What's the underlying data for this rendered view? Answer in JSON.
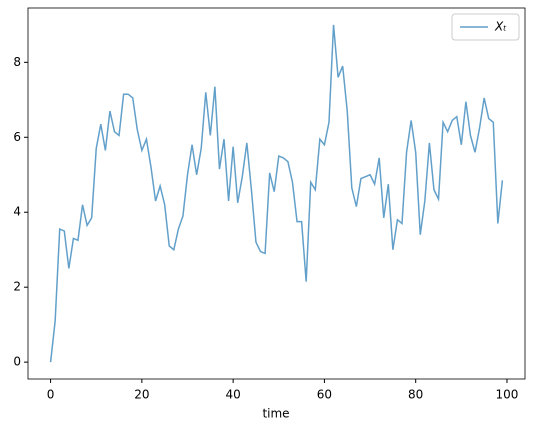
{
  "chart_data": {
    "type": "line",
    "xlabel": "time",
    "x": [
      0,
      1,
      2,
      3,
      4,
      5,
      6,
      7,
      8,
      9,
      10,
      11,
      12,
      13,
      14,
      15,
      16,
      17,
      18,
      19,
      20,
      21,
      22,
      23,
      24,
      25,
      26,
      27,
      28,
      29,
      30,
      31,
      32,
      33,
      34,
      35,
      36,
      37,
      38,
      39,
      40,
      41,
      42,
      43,
      44,
      45,
      46,
      47,
      48,
      49,
      50,
      51,
      52,
      53,
      54,
      55,
      56,
      57,
      58,
      59,
      60,
      61,
      62,
      63,
      64,
      65,
      66,
      67,
      68,
      69,
      70,
      71,
      72,
      73,
      74,
      75,
      76,
      77,
      78,
      79,
      80,
      81,
      82,
      83,
      84,
      85,
      86,
      87,
      88,
      89,
      90,
      91,
      92,
      93,
      94,
      95,
      96,
      97,
      98,
      99
    ],
    "series": [
      {
        "name": "Xₜ",
        "color": "#1f77b4",
        "values": [
          0,
          1.1,
          3.55,
          3.5,
          2.5,
          3.3,
          3.25,
          4.2,
          3.65,
          3.85,
          5.7,
          6.35,
          5.65,
          6.7,
          6.15,
          6.05,
          7.15,
          7.15,
          7.05,
          6.2,
          5.65,
          5.95,
          5.2,
          4.3,
          4.7,
          4.2,
          3.1,
          3.0,
          3.55,
          3.9,
          5.0,
          5.8,
          5.0,
          5.7,
          7.2,
          6.05,
          7.35,
          5.15,
          5.95,
          4.3,
          5.75,
          4.25,
          4.95,
          5.85,
          4.6,
          3.2,
          2.95,
          2.9,
          5.05,
          4.55,
          5.5,
          5.45,
          5.35,
          4.8,
          3.75,
          3.75,
          2.15,
          4.8,
          4.6,
          5.95,
          5.8,
          6.4,
          9.0,
          7.6,
          7.9,
          6.7,
          4.65,
          4.15,
          4.9,
          4.95,
          5.0,
          4.75,
          5.45,
          3.85,
          4.75,
          3.0,
          3.8,
          3.7,
          5.6,
          6.45,
          5.6,
          3.4,
          4.3,
          5.85,
          4.6,
          4.35,
          6.4,
          6.15,
          6.45,
          6.55,
          5.8,
          6.95,
          6.05,
          5.6,
          6.25,
          7.05,
          6.5,
          6.4,
          3.7,
          4.85
        ]
      }
    ],
    "xlim": [
      -4.95,
      103.95
    ],
    "xticks": [
      0,
      20,
      40,
      60,
      80,
      100
    ],
    "ylim": [
      -0.45,
      9.45
    ],
    "yticks": [
      0,
      2,
      4,
      6,
      8
    ],
    "legend": "upper right"
  }
}
